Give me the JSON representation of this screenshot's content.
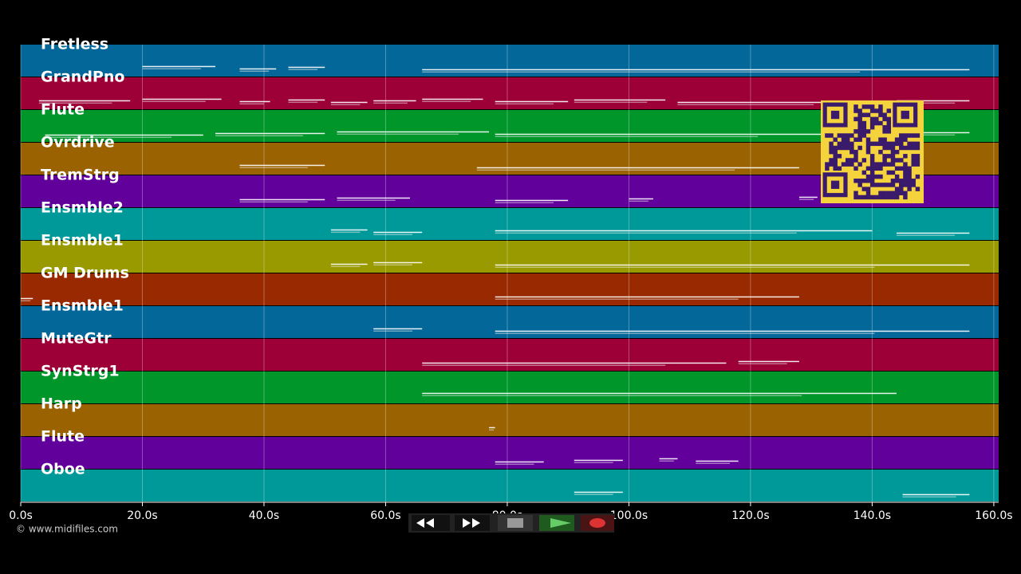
{
  "tracks": [
    {
      "name": "Fretless",
      "color": "#036899",
      "notes": [
        [
          20,
          32
        ],
        [
          36,
          42
        ],
        [
          44,
          50
        ],
        [
          66,
          156
        ]
      ]
    },
    {
      "name": "GrandPno",
      "color": "#9c0036",
      "notes": [
        [
          3,
          18
        ],
        [
          20,
          33
        ],
        [
          36,
          41
        ],
        [
          44,
          50
        ],
        [
          51,
          57
        ],
        [
          58,
          65
        ],
        [
          66,
          76
        ],
        [
          78,
          90
        ],
        [
          91,
          106
        ],
        [
          108,
          136
        ],
        [
          144,
          156
        ]
      ]
    },
    {
      "name": "Flute",
      "color": "#00962a",
      "notes": [
        [
          4,
          30
        ],
        [
          32,
          50
        ],
        [
          52,
          77
        ],
        [
          78,
          132
        ],
        [
          144,
          156
        ]
      ]
    },
    {
      "name": "Ovrdrive",
      "color": "#9a6200",
      "notes": [
        [
          36,
          50
        ],
        [
          75,
          128
        ]
      ]
    },
    {
      "name": "TremStrg",
      "color": "#62009c",
      "notes": [
        [
          36,
          50
        ],
        [
          52,
          64
        ],
        [
          78,
          90
        ],
        [
          100,
          104
        ],
        [
          128,
          131
        ]
      ]
    },
    {
      "name": "Ensmble2",
      "color": "#009999",
      "notes": [
        [
          51,
          57
        ],
        [
          58,
          66
        ],
        [
          78,
          140
        ],
        [
          144,
          156
        ]
      ]
    },
    {
      "name": "Ensmble1",
      "color": "#999900",
      "notes": [
        [
          51,
          57
        ],
        [
          58,
          66
        ],
        [
          78,
          156
        ]
      ]
    },
    {
      "name": "GM Drums",
      "color": "#992900",
      "notes": [
        [
          0,
          2
        ],
        [
          78,
          128
        ]
      ]
    },
    {
      "name": "Ensmble1",
      "color": "#036899",
      "notes": [
        [
          58,
          66
        ],
        [
          78,
          156
        ]
      ]
    },
    {
      "name": "MuteGtr",
      "color": "#9c0036",
      "notes": [
        [
          66,
          116
        ],
        [
          118,
          128
        ]
      ]
    },
    {
      "name": "SynStrg1",
      "color": "#00962a",
      "notes": [
        [
          66,
          144
        ]
      ]
    },
    {
      "name": "Harp",
      "color": "#9a6200",
      "notes": [
        [
          77,
          78
        ]
      ]
    },
    {
      "name": "Flute",
      "color": "#62009c",
      "notes": [
        [
          78,
          86
        ],
        [
          91,
          99
        ],
        [
          105,
          108
        ],
        [
          111,
          118
        ]
      ]
    },
    {
      "name": "Oboe",
      "color": "#009999",
      "notes": [
        [
          91,
          99
        ],
        [
          145,
          156
        ]
      ]
    }
  ],
  "xlim": [
    0,
    160.8
  ],
  "xticks": [
    {
      "value": 0,
      "label": "0.0s"
    },
    {
      "value": 20,
      "label": "20.0s"
    },
    {
      "value": 40,
      "label": "40.0s"
    },
    {
      "value": 60,
      "label": "60.0s"
    },
    {
      "value": 80,
      "label": "80.0s"
    },
    {
      "value": 100,
      "label": "100.0s"
    },
    {
      "value": 120,
      "label": "120.0s"
    },
    {
      "value": 140,
      "label": "140.0s"
    },
    {
      "value": 160,
      "label": "160.0s"
    }
  ],
  "copyright": "© www.midifiles.com"
}
